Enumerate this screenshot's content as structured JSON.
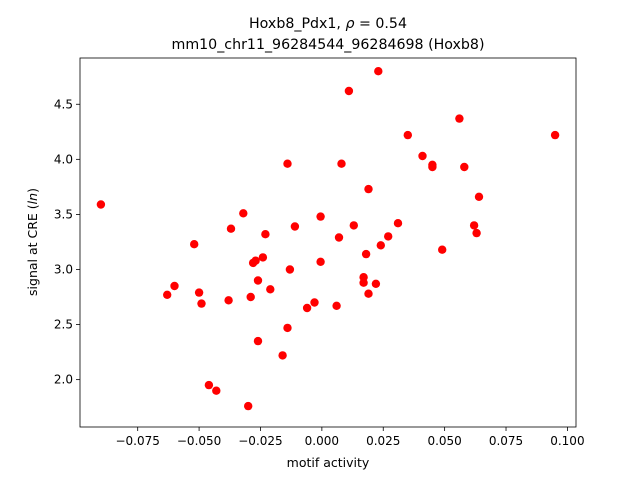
{
  "chart_data": {
    "type": "scatter",
    "title_line1_prefix": "Hoxb8_Pdx1, ",
    "title_line1_rho": "ρ",
    "title_line1_eq": " = 0.54",
    "title_line2": "mm10_chr11_96284544_96284698 (Hoxb8)",
    "xlabel": "motif activity",
    "ylabel_prefix": "signal at CRE (",
    "ylabel_italic": "ln",
    "ylabel_suffix": ")",
    "xlim": [
      -0.0985,
      0.1035
    ],
    "ylim": [
      1.57,
      4.92
    ],
    "x_ticks": [
      -0.075,
      -0.05,
      -0.025,
      0.0,
      0.025,
      0.05,
      0.075,
      0.1
    ],
    "x_tick_labels": [
      "−0.075",
      "−0.050",
      "−0.025",
      "0.000",
      "0.025",
      "0.050",
      "0.075",
      "0.100"
    ],
    "y_ticks": [
      2.0,
      2.5,
      3.0,
      3.5,
      4.0,
      4.5
    ],
    "y_tick_labels": [
      "2.0",
      "2.5",
      "3.0",
      "3.5",
      "4.0",
      "4.5"
    ],
    "marker_color": "#ff0000",
    "grid": false,
    "points": [
      [
        -0.09,
        3.59
      ],
      [
        -0.063,
        2.77
      ],
      [
        -0.06,
        2.85
      ],
      [
        -0.052,
        3.23
      ],
      [
        -0.05,
        2.79
      ],
      [
        -0.049,
        2.69
      ],
      [
        -0.046,
        1.95
      ],
      [
        -0.043,
        1.9
      ],
      [
        -0.037,
        3.37
      ],
      [
        -0.038,
        2.72
      ],
      [
        -0.032,
        3.51
      ],
      [
        -0.03,
        1.76
      ],
      [
        -0.029,
        2.75
      ],
      [
        -0.028,
        3.06
      ],
      [
        -0.027,
        3.08
      ],
      [
        -0.026,
        2.9
      ],
      [
        -0.026,
        2.35
      ],
      [
        -0.024,
        3.11
      ],
      [
        -0.023,
        3.32
      ],
      [
        -0.021,
        2.82
      ],
      [
        -0.016,
        2.22
      ],
      [
        -0.014,
        3.96
      ],
      [
        -0.014,
        2.47
      ],
      [
        -0.013,
        3.0
      ],
      [
        -0.011,
        3.39
      ],
      [
        -0.006,
        2.65
      ],
      [
        -0.003,
        2.7
      ],
      [
        -0.0005,
        3.07
      ],
      [
        -0.0005,
        3.48
      ],
      [
        0.006,
        2.67
      ],
      [
        0.007,
        3.29
      ],
      [
        0.008,
        3.96
      ],
      [
        0.011,
        4.62
      ],
      [
        0.013,
        3.4
      ],
      [
        0.017,
        2.93
      ],
      [
        0.017,
        2.88
      ],
      [
        0.018,
        3.14
      ],
      [
        0.019,
        3.73
      ],
      [
        0.019,
        2.78
      ],
      [
        0.022,
        2.87
      ],
      [
        0.023,
        4.8
      ],
      [
        0.024,
        3.22
      ],
      [
        0.027,
        3.3
      ],
      [
        0.031,
        3.42
      ],
      [
        0.035,
        4.22
      ],
      [
        0.041,
        4.03
      ],
      [
        0.045,
        3.93
      ],
      [
        0.045,
        3.95
      ],
      [
        0.049,
        3.18
      ],
      [
        0.056,
        4.37
      ],
      [
        0.058,
        3.93
      ],
      [
        0.062,
        3.4
      ],
      [
        0.063,
        3.33
      ],
      [
        0.064,
        3.66
      ],
      [
        0.095,
        4.22
      ]
    ]
  }
}
